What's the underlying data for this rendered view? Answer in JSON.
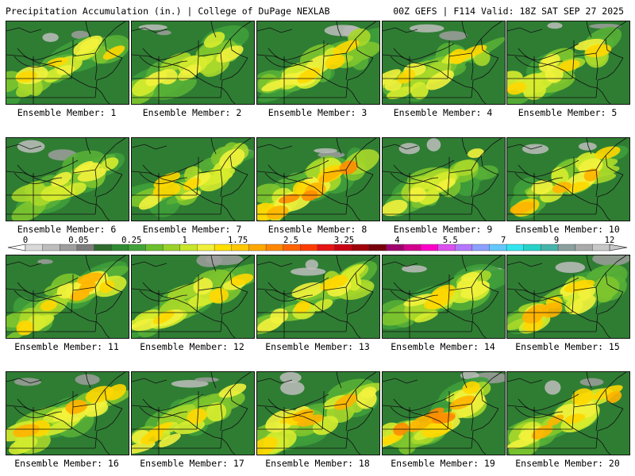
{
  "header": {
    "left": "Precipitation Accumulation (in.) | College of DuPage NEXLAB",
    "right": "00Z GEFS | F114 Valid: 18Z SAT SEP 27 2025"
  },
  "panel_label_prefix": "Ensemble Member:",
  "members": [
    1,
    2,
    3,
    4,
    5,
    6,
    7,
    8,
    9,
    10,
    11,
    12,
    13,
    14,
    15,
    16,
    17,
    18,
    19,
    20
  ],
  "colorbar": {
    "tick_labels": [
      "0",
      "0.05",
      "0.25",
      "1",
      "1.75",
      "2.5",
      "3.25",
      "4",
      "5.5",
      "7",
      "9",
      "12"
    ],
    "colors": [
      "#d9d9d9",
      "#bdbdbd",
      "#9e9e9e",
      "#7c7c7c",
      "#2e6b2e",
      "#2f8a33",
      "#43a33b",
      "#6cbf2e",
      "#9bd22a",
      "#c8e62a",
      "#f0f03c",
      "#ffe000",
      "#ffc800",
      "#ffa800",
      "#ff8800",
      "#ff6400",
      "#ff3c00",
      "#e61414",
      "#c80014",
      "#a0000a",
      "#78000a",
      "#a0006e",
      "#d2008c",
      "#ff00c8",
      "#dc50f0",
      "#b478ff",
      "#8ca0ff",
      "#64c8ff",
      "#32e6f0",
      "#28d2c8",
      "#46b4aa",
      "#8ca0a0",
      "#aaaaaa",
      "#c8c8c8"
    ]
  }
}
